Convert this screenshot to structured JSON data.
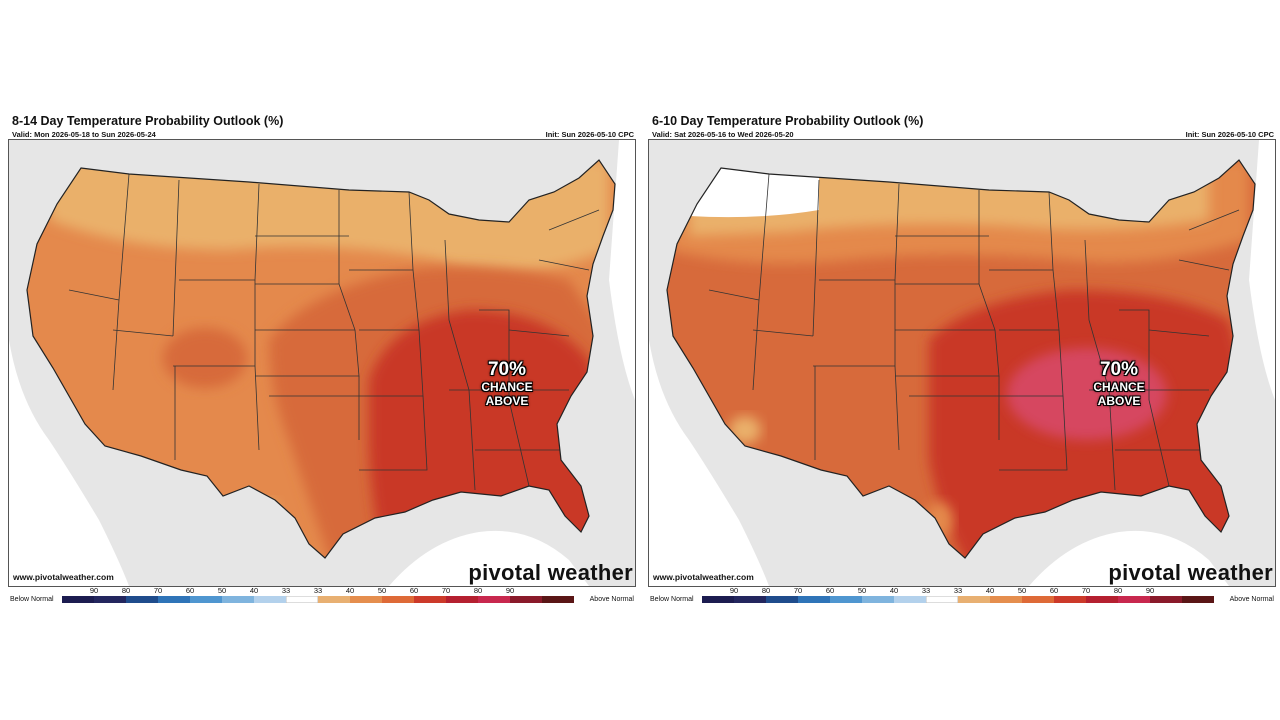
{
  "maps": [
    {
      "title": "8-14 Day Temperature Probability Outlook (%)",
      "valid": "Valid: Mon 2026-05-18 to Sun 2026-05-24",
      "init": "Init: Sun 2026-05-10 CPC",
      "callout_pct": "70%",
      "callout_line1": "CHANCE",
      "callout_line2": "ABOVE",
      "site": "www.pivotalweather.com",
      "brand": "pivotal weather"
    },
    {
      "title": "6-10 Day Temperature Probability Outlook (%)",
      "valid": "Valid: Sat 2026-05-16 to Wed 2026-05-20",
      "init": "Init: Sun 2026-05-10 CPC",
      "callout_pct": "70%",
      "callout_line1": "CHANCE",
      "callout_line2": "ABOVE",
      "site": "www.pivotalweather.com",
      "brand": "pivotal weather"
    }
  ],
  "legend": {
    "below_label": "Below Normal",
    "above_label": "Above Normal",
    "ticks": [
      "90",
      "80",
      "70",
      "60",
      "50",
      "40",
      "33",
      "33",
      "40",
      "50",
      "60",
      "70",
      "80",
      "90"
    ],
    "colors": [
      "#1c1c50",
      "#23265e",
      "#1f4c8c",
      "#2f74b8",
      "#4f96d0",
      "#7fb4de",
      "#b3d1ec",
      "#ffffff",
      "#e8b072",
      "#e58e4e",
      "#de6a37",
      "#cc3a2a",
      "#b52030",
      "#c8284e",
      "#8a1a2a",
      "#5a1616"
    ]
  },
  "colors": {
    "light_orange": "#eab06a",
    "orange": "#e4894c",
    "dark_orange": "#d76a3b",
    "red": "#c93728",
    "pink": "#d64761",
    "white": "#ffffff",
    "land_outside": "#e6e6e6",
    "ocean": "#ffffff"
  }
}
